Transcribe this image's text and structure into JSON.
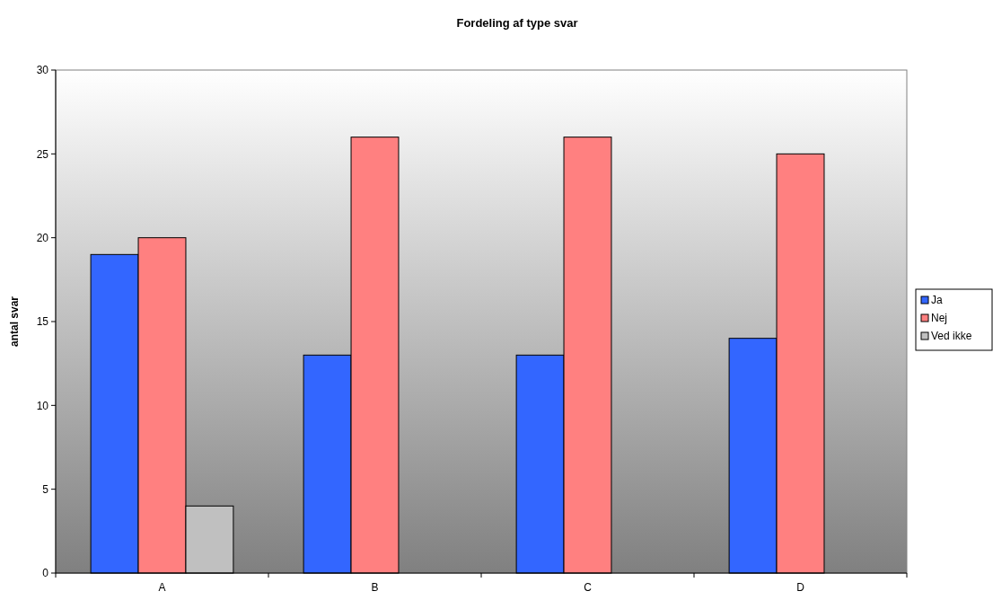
{
  "chart_data": {
    "type": "bar",
    "title": "Fordeling af type svar",
    "ylabel": "antal svar",
    "categories": [
      "A",
      "B",
      "C",
      "D"
    ],
    "series": [
      {
        "name": "Ja",
        "color": "#3366ff",
        "values": [
          19,
          13,
          13,
          14
        ]
      },
      {
        "name": "Nej",
        "color": "#ff8080",
        "values": [
          20,
          26,
          26,
          25
        ]
      },
      {
        "name": "Ved ikke",
        "color": "#c0c0c0",
        "values": [
          4,
          null,
          null,
          null
        ]
      }
    ],
    "ylim": [
      0,
      30
    ],
    "yticks": [
      0,
      5,
      10,
      15,
      20,
      25,
      30
    ],
    "grid": false,
    "legend": "right"
  }
}
